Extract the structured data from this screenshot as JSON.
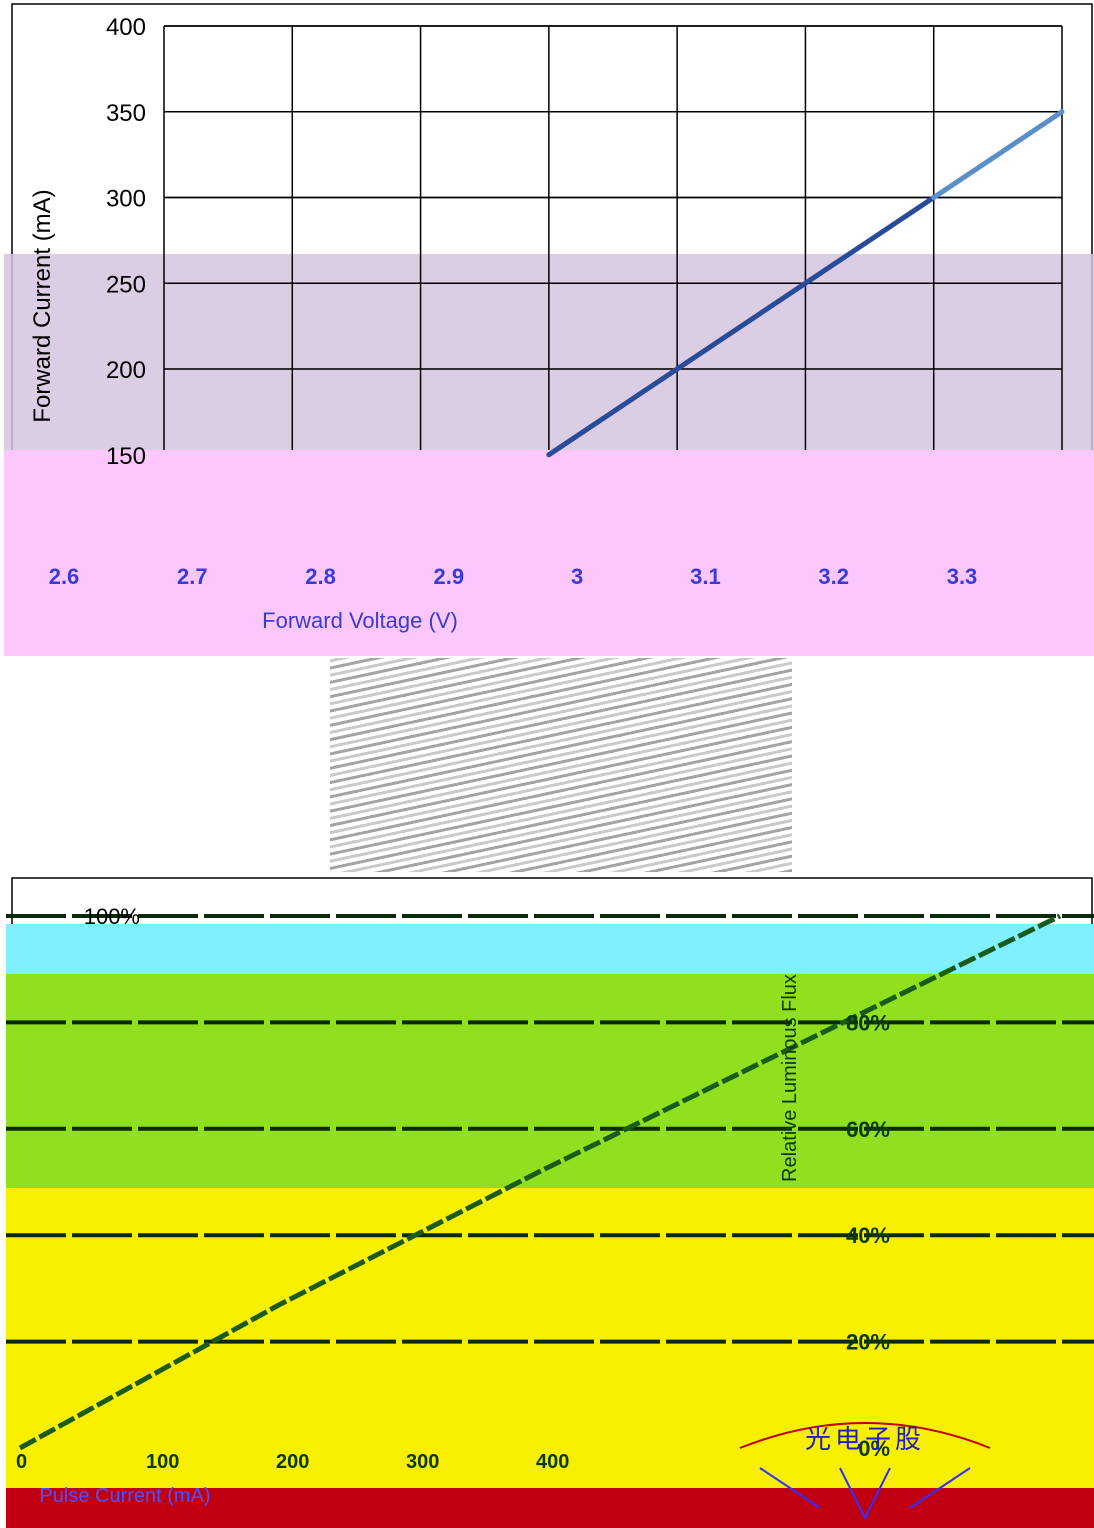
{
  "chart_data": [
    {
      "type": "line",
      "title": "",
      "xlabel": "Forward Voltage (V)",
      "ylabel": "Forward Current (mA)",
      "ylim": [
        0,
        400
      ],
      "yticks": [
        "400",
        "350",
        "300",
        "250",
        "200",
        "150"
      ],
      "xticks": [
        "2.6",
        "2.7",
        "2.8",
        "2.9",
        "3",
        "3.1",
        "3.2",
        "3.3"
      ],
      "grid": true,
      "series": [
        {
          "x": [
            2.9,
            3.0,
            3.1,
            3.2
          ],
          "y": [
            150,
            200,
            250,
            300
          ]
        },
        {
          "x": [
            3.2,
            3.3
          ],
          "y": [
            300,
            350
          ]
        }
      ],
      "series_colors": [
        "#2a4a9a",
        "#5b8fc8"
      ]
    },
    {
      "type": "line",
      "title": "",
      "xlabel": "Pulse Current (mA)",
      "ylabel": "Relative Luminous Flux",
      "yticks": [
        "100%",
        "80%",
        "60%",
        "40%",
        "20%",
        "0%"
      ],
      "xticks": [
        "0",
        "100",
        "200",
        "300",
        "400"
      ],
      "grid": true,
      "series": [
        {
          "x": [
            0,
            100,
            200,
            300,
            400
          ],
          "y": [
            0,
            27,
            52,
            76,
            100
          ]
        }
      ],
      "series_colors": [
        "#1a5a1a"
      ]
    }
  ],
  "overlay_colors": {
    "band_purple": "#d3c4df",
    "band_pink": "#fcc8fc",
    "band_cyan": "#80f0ff",
    "band_green": "#90e020",
    "band_yellow": "#f8f000",
    "band_red": "#c00010"
  },
  "seal": {
    "text": "光电子股"
  }
}
